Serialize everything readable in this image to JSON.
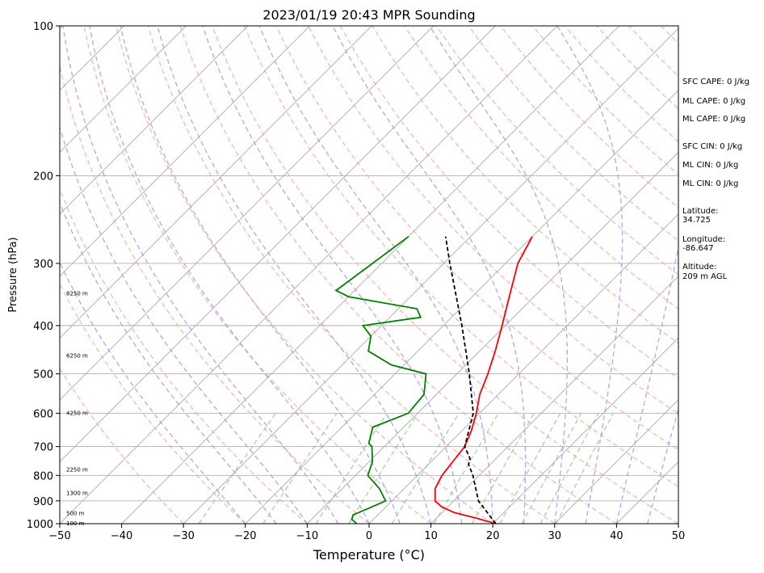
{
  "chart_data": {
    "type": "line",
    "title": "2023/01/19 20:43 MPR Sounding",
    "xlabel": "Temperature (°C)",
    "ylabel": "Pressure (hPa)",
    "xlim": [
      -50,
      50
    ],
    "ylim": [
      1000,
      100
    ],
    "y_scale": "log",
    "grid": true,
    "x_ticks": [
      -50,
      -40,
      -30,
      -20,
      -10,
      0,
      10,
      20,
      30,
      40,
      50
    ],
    "x_tick_labels": [
      "−50",
      "−40",
      "−30",
      "−20",
      "−10",
      "0",
      "10",
      "20",
      "30",
      "40",
      "50"
    ],
    "y_ticks": [
      1000,
      900,
      800,
      700,
      600,
      500,
      400,
      300,
      200,
      100
    ],
    "y_tick_labels": [
      "1000",
      "900",
      "800",
      "700",
      "600",
      "500",
      "400",
      "300",
      "200",
      "100"
    ],
    "series": [
      {
        "role": "temperature",
        "color": "#ff0000",
        "style": "solid",
        "points": [
          [
            1000,
            20.5
          ],
          [
            975,
            16.5
          ],
          [
            950,
            12.0
          ],
          [
            925,
            9.0
          ],
          [
            900,
            7.0
          ],
          [
            850,
            5.0
          ],
          [
            800,
            4.0
          ],
          [
            750,
            3.5
          ],
          [
            700,
            3.0
          ],
          [
            650,
            1.5
          ],
          [
            600,
            -0.5
          ],
          [
            550,
            -3.0
          ],
          [
            500,
            -5.0
          ],
          [
            450,
            -7.5
          ],
          [
            400,
            -10.5
          ],
          [
            350,
            -14.0
          ],
          [
            300,
            -18.0
          ],
          [
            265,
            -20.0
          ]
        ]
      },
      {
        "role": "dewpoint",
        "color": "#008000",
        "style": "solid",
        "points": [
          [
            1000,
            -2.0
          ],
          [
            980,
            -3.5
          ],
          [
            960,
            -4.0
          ],
          [
            930,
            -2.5
          ],
          [
            900,
            -1.0
          ],
          [
            850,
            -4.0
          ],
          [
            800,
            -8.0
          ],
          [
            750,
            -9.5
          ],
          [
            700,
            -12.0
          ],
          [
            690,
            -13.0
          ],
          [
            640,
            -15.0
          ],
          [
            600,
            -11.5
          ],
          [
            550,
            -12.0
          ],
          [
            500,
            -15.0
          ],
          [
            480,
            -22.0
          ],
          [
            450,
            -28.0
          ],
          [
            420,
            -30.0
          ],
          [
            400,
            -33.0
          ],
          [
            385,
            -25.0
          ],
          [
            370,
            -27.0
          ],
          [
            350,
            -40.0
          ],
          [
            340,
            -43.0
          ],
          [
            265,
            -40.0
          ]
        ]
      },
      {
        "role": "parcel",
        "color": "#000000",
        "style": "dashed",
        "points": [
          [
            1000,
            20.5
          ],
          [
            900,
            14.0
          ],
          [
            800,
            9.0
          ],
          [
            760,
            6.5
          ],
          [
            740,
            5.8
          ],
          [
            700,
            3.0
          ],
          [
            600,
            -1.0
          ],
          [
            500,
            -8.0
          ],
          [
            400,
            -17.0
          ],
          [
            300,
            -29.0
          ],
          [
            265,
            -34.0
          ]
        ]
      }
    ],
    "height_labels": [
      {
        "pressure": 1000,
        "text": "100 m"
      },
      {
        "pressure": 955,
        "text": "500 m"
      },
      {
        "pressure": 870,
        "text": "1300 m"
      },
      {
        "pressure": 780,
        "text": "2250 m"
      },
      {
        "pressure": 600,
        "text": "4250 m"
      },
      {
        "pressure": 460,
        "text": "6250 m"
      },
      {
        "pressure": 345,
        "text": "8250 m"
      }
    ],
    "info": {
      "sfc_cape": "SFC CAPE: 0 J/kg",
      "ml_cape_1": "ML CAPE: 0 J/kg",
      "ml_cape_2": "ML CAPE: 0 J/kg",
      "sfc_cin": "SFC CIN: 0 J/kg",
      "ml_cin_1": "ML CIN: 0 J/kg",
      "ml_cin_2": "ML CIN: 0 J/kg",
      "latitude_label": "Latitude:",
      "latitude_value": "34.725",
      "longitude_label": "Longitude:",
      "longitude_value": "-86.647",
      "altitude_label": "Altitude:",
      "altitude_value": "209 m AGL"
    },
    "colors": {
      "isotherm": "#aaaaaa",
      "dry_adiabat": "#ff9999",
      "moist_adiabat": "#9999ff",
      "mixing_ratio": "#88cc88",
      "hodograph_bg": "#ffffff"
    }
  }
}
